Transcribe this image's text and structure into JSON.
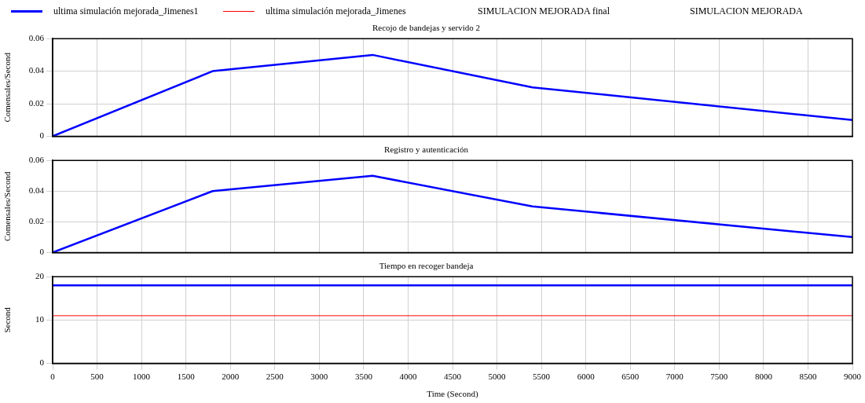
{
  "chart_data": [
    {
      "type": "line",
      "title": "Recojo de bandejas y servido 2",
      "ylabel": "Comensales/Second",
      "x": [
        0,
        1800,
        3600,
        5400,
        9000
      ],
      "xlim": [
        0,
        9000
      ],
      "xticks": [
        0,
        500,
        1000,
        1500,
        2000,
        2500,
        3000,
        3500,
        4000,
        4500,
        5000,
        5500,
        6000,
        6500,
        7000,
        7500,
        8000,
        8500,
        9000
      ],
      "ylim": [
        0,
        0.06
      ],
      "yticks": [
        0,
        0.02,
        0.04,
        0.06
      ],
      "grid": true,
      "legend": "top",
      "tick_labels": "y",
      "marker": "none",
      "series": [
        {
          "name": "ultima simulación mejorada_Jimenes1",
          "color": "#0000ff",
          "values": [
            0,
            0.04,
            0.05,
            0.03,
            0.01
          ]
        },
        {
          "name": "ultima simulación mejorada_Jimenes",
          "color": "#ff0000",
          "values": [
            null,
            null,
            null,
            null,
            null
          ]
        },
        {
          "name": "SIMULACION MEJORADA final",
          "values": [
            null,
            null,
            null,
            null,
            null
          ]
        },
        {
          "name": "SIMULACION MEJORADA",
          "values": [
            null,
            null,
            null,
            null,
            null
          ]
        }
      ]
    },
    {
      "type": "line",
      "title": "Registro y autenticación",
      "ylabel": "Comensales/Second",
      "x": [
        0,
        1800,
        3600,
        5400,
        9000
      ],
      "xlim": [
        0,
        9000
      ],
      "xticks": [
        0,
        500,
        1000,
        1500,
        2000,
        2500,
        3000,
        3500,
        4000,
        4500,
        5000,
        5500,
        6000,
        6500,
        7000,
        7500,
        8000,
        8500,
        9000
      ],
      "ylim": [
        0,
        0.06
      ],
      "yticks": [
        0,
        0.02,
        0.04,
        0.06
      ],
      "grid": true,
      "tick_labels": "y",
      "marker": "none",
      "series": [
        {
          "color": "#0000ff",
          "values": [
            0,
            0.04,
            0.05,
            0.03,
            0.01
          ]
        }
      ]
    },
    {
      "type": "line",
      "title": "Tiempo en recoger bandeja",
      "xlabel": "Time (Second)",
      "ylabel": "Second",
      "x": [
        0,
        9000
      ],
      "xlim": [
        0,
        9000
      ],
      "xticks": [
        0,
        500,
        1000,
        1500,
        2000,
        2500,
        3000,
        3500,
        4000,
        4500,
        5000,
        5500,
        6000,
        6500,
        7000,
        7500,
        8000,
        8500,
        9000
      ],
      "ylim": [
        0,
        20
      ],
      "yticks": [
        0,
        10,
        20
      ],
      "grid": true,
      "marker": "none",
      "series": [
        {
          "color": "#0000ff",
          "values": [
            18,
            18
          ]
        },
        {
          "color": "#ff0000",
          "values": [
            11,
            11
          ]
        }
      ]
    }
  ]
}
